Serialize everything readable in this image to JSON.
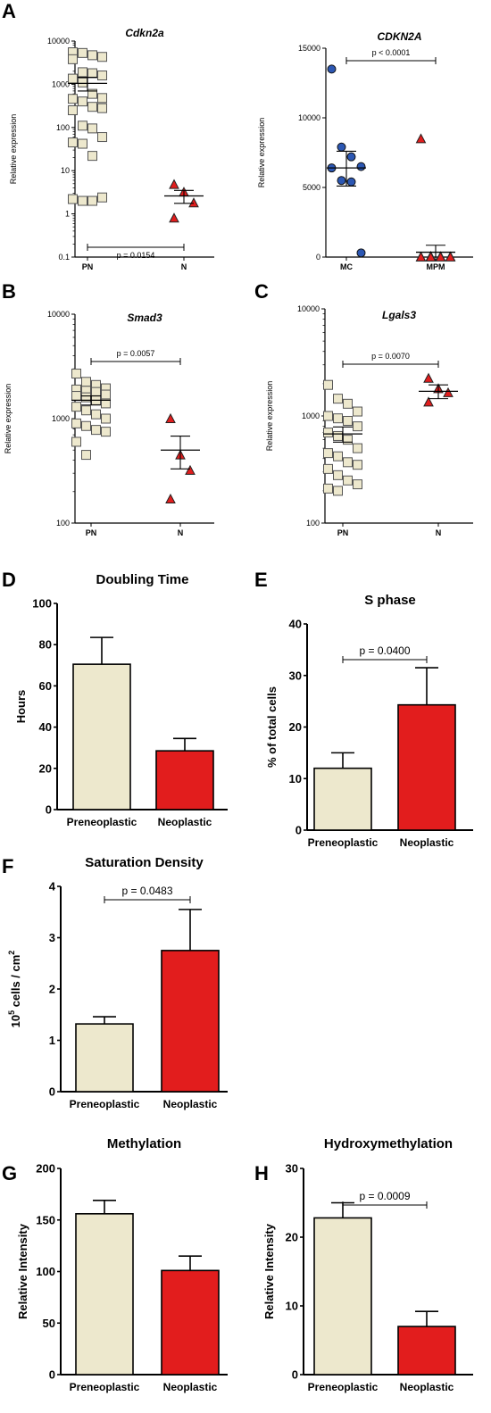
{
  "figure": {
    "panel_labels": [
      "A",
      "B",
      "C",
      "D",
      "E",
      "F",
      "G",
      "H"
    ]
  },
  "colors": {
    "preneoplastic": "#ede8cd",
    "neoplastic": "#e21d1d",
    "mc_marker": "#2c57b3",
    "axis": "#000000"
  },
  "chart_data": [
    {
      "id": "a1",
      "type": "scatter",
      "title": "Cdkn2a",
      "ylabel": "Relative expression",
      "xlabel": "",
      "scale": "log",
      "ylim": [
        0.1,
        10000
      ],
      "yticks": [
        "0.1",
        "1",
        "10",
        "100",
        "1000",
        "10000"
      ],
      "categories": [
        "PN",
        "N"
      ],
      "series": [
        {
          "category": "PN",
          "marker": "square",
          "color": "#ede8cd",
          "values": [
            5500,
            5300,
            4700,
            4300,
            3800,
            1900,
            1800,
            1600,
            1350,
            1100,
            600,
            480,
            460,
            400,
            300,
            280,
            250,
            110,
            95,
            60,
            45,
            42,
            22,
            2.4,
            2.2,
            2.0,
            2.0
          ],
          "mean": 1050,
          "sem_low": 700,
          "sem_high": 1450
        },
        {
          "category": "N",
          "marker": "triangle",
          "color": "#e21d1d",
          "values": [
            4.8,
            3.2,
            1.8,
            0.8
          ],
          "mean": 2.6,
          "sem_low": 1.75,
          "sem_high": 3.5
        }
      ],
      "annotation": {
        "text": "p = 0.0154",
        "between": [
          "PN",
          "N"
        ],
        "position": "below"
      }
    },
    {
      "id": "a2",
      "type": "scatter",
      "title": "CDKN2A",
      "ylabel": "Relative expression",
      "xlabel": "",
      "scale": "linear",
      "ylim": [
        0,
        15000
      ],
      "yticks": [
        "0",
        "5000",
        "10000",
        "15000"
      ],
      "categories": [
        "MC",
        "MPM"
      ],
      "series": [
        {
          "category": "MC",
          "marker": "circle",
          "color": "#2c57b3",
          "values": [
            13500,
            7900,
            7200,
            6500,
            6400,
            5500,
            5400,
            300
          ],
          "mean": 6400,
          "sem_low": 5100,
          "sem_high": 7600
        },
        {
          "category": "MPM",
          "marker": "triangle",
          "color": "#e21d1d",
          "values": [
            8500,
            60,
            40,
            30,
            20,
            20,
            10,
            10,
            5,
            5
          ],
          "mean": 350,
          "sem_low": 0,
          "sem_high": 850
        }
      ],
      "annotation": {
        "text": "p < 0.0001",
        "between": [
          "MC",
          "MPM"
        ],
        "position": "above"
      }
    },
    {
      "id": "b",
      "type": "scatter",
      "title": "Smad3",
      "ylabel": "Relative expression",
      "xlabel": "",
      "scale": "log",
      "ylim": [
        100,
        10000
      ],
      "yticks": [
        "100",
        "1000",
        "10000"
      ],
      "categories": [
        "PN",
        "N"
      ],
      "series": [
        {
          "category": "PN",
          "marker": "square",
          "color": "#ede8cd",
          "values": [
            2700,
            2250,
            2100,
            1950,
            1900,
            1850,
            1800,
            1700,
            1650,
            1600,
            1500,
            1400,
            1300,
            1200,
            1100,
            1000,
            900,
            850,
            780,
            750,
            600,
            450
          ],
          "mean": 1500,
          "sem_low": 1350,
          "sem_high": 1650
        },
        {
          "category": "N",
          "marker": "triangle",
          "color": "#e21d1d",
          "values": [
            1000,
            450,
            320,
            170
          ],
          "mean": 500,
          "sem_low": 330,
          "sem_high": 680
        }
      ],
      "annotation": {
        "text": "p = 0.0057",
        "between": [
          "PN",
          "N"
        ],
        "position": "above"
      }
    },
    {
      "id": "c",
      "type": "scatter",
      "title": "Lgals3",
      "ylabel": "Relative expression",
      "xlabel": "",
      "scale": "log",
      "ylim": [
        100,
        10000
      ],
      "yticks": [
        "100",
        "1000",
        "10000"
      ],
      "categories": [
        "PN",
        "N"
      ],
      "series": [
        {
          "category": "PN",
          "marker": "square",
          "color": "#ede8cd",
          "values": [
            1950,
            1450,
            1300,
            1100,
            1000,
            950,
            900,
            800,
            700,
            650,
            600,
            500,
            450,
            420,
            370,
            350,
            320,
            280,
            250,
            230,
            210,
            200
          ],
          "mean": 680,
          "sem_low": 570,
          "sem_high": 790
        },
        {
          "category": "N",
          "marker": "triangle",
          "color": "#e21d1d",
          "values": [
            2250,
            1800,
            1650,
            1350
          ],
          "mean": 1700,
          "sem_low": 1450,
          "sem_high": 1950
        }
      ],
      "annotation": {
        "text": "p = 0.0070",
        "between": [
          "PN",
          "N"
        ],
        "position": "above"
      }
    },
    {
      "id": "d",
      "type": "bar",
      "title": "Doubling Time",
      "ylabel": "Hours",
      "xlabel": "",
      "ylim": [
        0,
        100
      ],
      "yticks": [
        "0",
        "20",
        "40",
        "60",
        "80",
        "100"
      ],
      "categories": [
        "Preneoplastic",
        "Neoplastic"
      ],
      "values": [
        70.5,
        28.5
      ],
      "errors": [
        13,
        6
      ]
    },
    {
      "id": "e",
      "type": "bar",
      "title": "S phase",
      "ylabel": "% of total cells",
      "xlabel": "",
      "ylim": [
        0,
        40
      ],
      "yticks": [
        "0",
        "10",
        "20",
        "30",
        "40"
      ],
      "categories": [
        "Preneoplastic",
        "Neoplastic"
      ],
      "values": [
        12,
        24.3
      ],
      "errors": [
        3,
        7.2
      ],
      "annotation": {
        "text": "p = 0.0400"
      }
    },
    {
      "id": "f",
      "type": "bar",
      "title": "Saturation Density",
      "ylabel": "10^5 cells / cm^2",
      "xlabel": "",
      "ylim": [
        0,
        4
      ],
      "yticks": [
        "0",
        "1",
        "2",
        "3",
        "4"
      ],
      "categories": [
        "Preneoplastic",
        "Neoplastic"
      ],
      "values": [
        1.32,
        2.75
      ],
      "errors": [
        0.14,
        0.8
      ],
      "annotation": {
        "text": "p = 0.0483"
      }
    },
    {
      "id": "g",
      "type": "bar",
      "title": "Methylation",
      "ylabel": "Relative Intensity",
      "xlabel": "",
      "ylim": [
        0,
        200
      ],
      "yticks": [
        "0",
        "50",
        "100",
        "150",
        "200"
      ],
      "categories": [
        "Preneoplastic",
        "Neoplastic"
      ],
      "values": [
        156,
        101
      ],
      "errors": [
        13,
        14
      ]
    },
    {
      "id": "h",
      "type": "bar",
      "title": "Hydroxymethylation",
      "ylabel": "Relative Intensity",
      "xlabel": "",
      "ylim": [
        0,
        30
      ],
      "yticks": [
        "0",
        "10",
        "20",
        "30"
      ],
      "categories": [
        "Preneoplastic",
        "Neoplastic"
      ],
      "values": [
        22.8,
        7
      ],
      "errors": [
        2.2,
        2.2
      ],
      "annotation": {
        "text": "p = 0.0009"
      }
    }
  ]
}
